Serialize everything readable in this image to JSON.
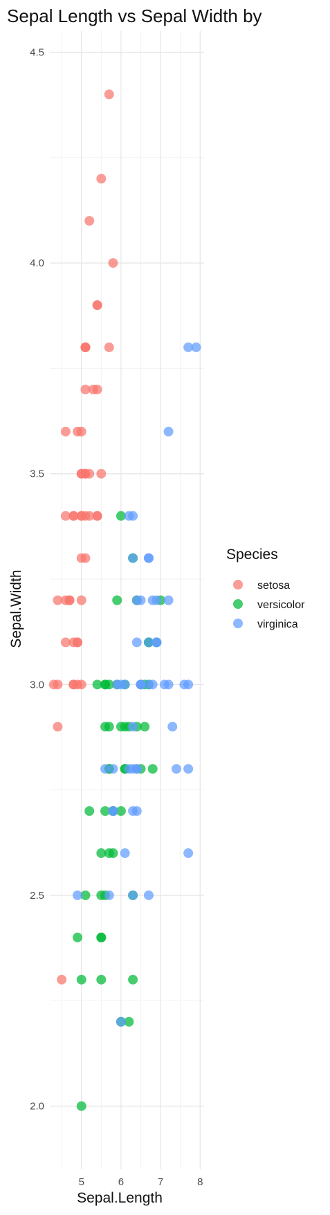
{
  "chart_data": {
    "type": "scatter",
    "title": "Sepal Length vs Sepal Width by",
    "xlabel": "Sepal.Length",
    "ylabel": "Sepal.Width",
    "xlim": [
      4.2,
      8.1
    ],
    "ylim": [
      1.85,
      4.55
    ],
    "x_ticks": [
      5,
      6,
      7,
      8
    ],
    "x_tick_labels": [
      "5",
      "6",
      "7",
      "8"
    ],
    "y_ticks": [
      2.0,
      2.5,
      3.0,
      3.5,
      4.0,
      4.5
    ],
    "y_tick_labels": [
      "2.0",
      "2.5",
      "3.0",
      "3.5",
      "4.0",
      "4.5"
    ],
    "grid": true,
    "legend": {
      "title": "Species",
      "position": "right"
    },
    "series": [
      {
        "name": "setosa",
        "color": "#F8766D",
        "x": [
          5.1,
          4.9,
          4.7,
          4.6,
          5.0,
          5.4,
          4.6,
          5.0,
          4.4,
          4.9,
          5.4,
          4.8,
          4.8,
          4.3,
          5.8,
          5.7,
          5.4,
          5.1,
          5.7,
          5.1,
          5.4,
          5.1,
          4.6,
          5.1,
          4.8,
          5.0,
          5.0,
          5.2,
          5.2,
          4.7,
          4.8,
          5.4,
          5.2,
          5.5,
          4.9,
          5.0,
          5.5,
          4.9,
          4.4,
          5.1,
          5.0,
          4.5,
          4.4,
          5.0,
          5.1,
          4.8,
          5.1,
          4.6,
          5.3,
          5.0
        ],
        "y": [
          3.5,
          3.0,
          3.2,
          3.1,
          3.6,
          3.9,
          3.4,
          3.4,
          2.9,
          3.1,
          3.7,
          3.4,
          3.0,
          3.0,
          4.0,
          4.4,
          3.9,
          3.5,
          3.8,
          3.8,
          3.4,
          3.7,
          3.6,
          3.3,
          3.4,
          3.0,
          3.4,
          3.5,
          3.4,
          3.2,
          3.1,
          3.4,
          4.1,
          4.2,
          3.1,
          3.2,
          3.5,
          3.6,
          3.0,
          3.4,
          3.5,
          2.3,
          3.2,
          3.5,
          3.8,
          3.0,
          3.8,
          3.2,
          3.7,
          3.3
        ]
      },
      {
        "name": "versicolor",
        "color": "#00BA38",
        "x": [
          7.0,
          6.4,
          6.9,
          5.5,
          6.5,
          5.7,
          6.3,
          4.9,
          6.6,
          5.2,
          5.0,
          5.9,
          6.0,
          6.1,
          5.6,
          6.7,
          5.6,
          5.8,
          6.2,
          5.6,
          5.9,
          6.1,
          6.3,
          6.1,
          6.4,
          6.6,
          6.8,
          6.7,
          6.0,
          5.7,
          5.5,
          5.5,
          5.8,
          6.0,
          5.4,
          6.0,
          6.7,
          6.3,
          5.6,
          5.5,
          5.5,
          6.1,
          5.8,
          5.0,
          5.6,
          5.7,
          5.7,
          6.2,
          5.1,
          5.7
        ],
        "y": [
          3.2,
          3.2,
          3.1,
          2.3,
          2.8,
          2.8,
          3.3,
          2.4,
          2.9,
          2.7,
          2.0,
          3.0,
          2.2,
          2.9,
          2.9,
          3.1,
          3.0,
          2.7,
          2.2,
          2.5,
          3.2,
          2.8,
          2.5,
          2.8,
          2.9,
          3.0,
          2.8,
          3.0,
          2.9,
          2.6,
          2.4,
          2.4,
          2.7,
          2.7,
          3.0,
          3.4,
          3.1,
          2.3,
          3.0,
          2.5,
          2.6,
          3.0,
          2.6,
          2.3,
          2.7,
          3.0,
          2.9,
          2.9,
          2.5,
          2.8
        ]
      },
      {
        "name": "virginica",
        "color": "#619CFF",
        "x": [
          6.3,
          5.8,
          7.1,
          6.3,
          6.5,
          7.6,
          4.9,
          7.3,
          6.7,
          7.2,
          6.5,
          6.4,
          6.8,
          5.7,
          5.8,
          6.4,
          6.5,
          7.7,
          7.7,
          6.0,
          6.9,
          5.6,
          7.7,
          6.3,
          6.7,
          7.2,
          6.2,
          6.1,
          6.4,
          7.2,
          7.4,
          7.9,
          6.4,
          6.3,
          6.1,
          7.7,
          6.3,
          6.4,
          6.0,
          6.9,
          6.7,
          6.9,
          5.8,
          6.8,
          6.7,
          6.7,
          6.3,
          6.5,
          6.2,
          5.9
        ],
        "y": [
          3.3,
          2.7,
          3.0,
          2.9,
          3.0,
          3.0,
          2.5,
          2.9,
          2.5,
          3.6,
          3.2,
          2.7,
          3.0,
          2.5,
          2.8,
          3.2,
          3.0,
          3.8,
          2.6,
          2.2,
          3.2,
          2.8,
          2.8,
          2.7,
          3.3,
          3.2,
          2.8,
          3.0,
          2.8,
          3.0,
          2.8,
          3.8,
          2.8,
          2.8,
          2.6,
          3.0,
          3.4,
          3.1,
          3.0,
          3.1,
          3.1,
          3.1,
          2.7,
          3.2,
          3.3,
          3.0,
          2.5,
          3.0,
          3.4,
          3.0
        ]
      }
    ]
  }
}
